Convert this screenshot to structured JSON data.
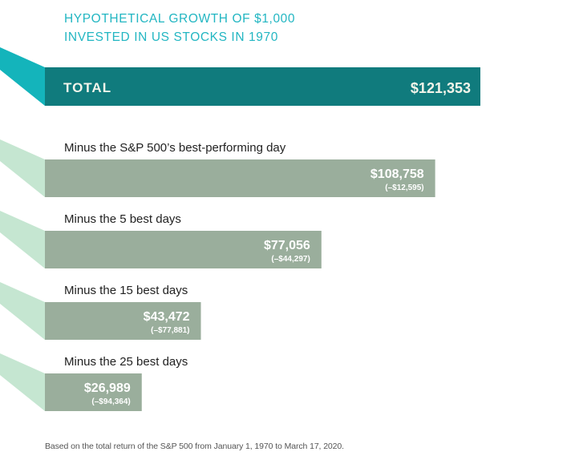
{
  "chart_data": {
    "type": "bar",
    "orientation": "horizontal",
    "title_lines": [
      "HYPOTHETICAL GROWTH OF $1,000",
      "INVESTED IN US STOCKS IN 1970"
    ],
    "total": {
      "label": "TOTAL",
      "value": 121353,
      "value_label": "$121,353"
    },
    "categories": [
      "Minus the S&P 500’s best-performing day",
      "Minus the 5 best days",
      "Minus the 15 best days",
      "Minus the 25 best days"
    ],
    "values": [
      108758,
      77056,
      43472,
      26989
    ],
    "value_labels": [
      "$108,758",
      "$77,056",
      "$43,472",
      "$26,989"
    ],
    "differences": [
      -12595,
      -44297,
      -77881,
      -94364
    ],
    "difference_labels": [
      "(–$12,595)",
      "(–$44,297)",
      "(–$77,881)",
      "(–$94,364)"
    ],
    "xlim": [
      0,
      121353
    ],
    "grid": false,
    "footnote": "Based on the total return of the S&P 500 from January 1, 1970 to March 17, 2020."
  },
  "colors": {
    "title": "#22b6c2",
    "total_bar": "#107b7d",
    "total_wedge": "#14b4bb",
    "total_text": "#f2f4ea",
    "bar": "#9aae9c",
    "wedge": "#c5e6d1",
    "bar_text": "#ffffff",
    "label": "#222222"
  }
}
